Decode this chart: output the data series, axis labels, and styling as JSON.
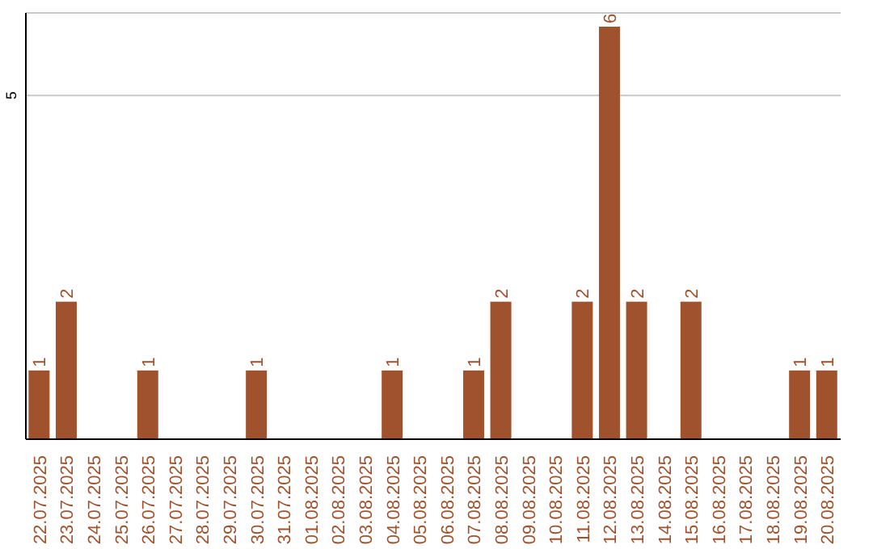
{
  "chart_data": {
    "type": "bar",
    "categories": [
      "22.07.2025",
      "23.07.2025",
      "24.07.2025",
      "25.07.2025",
      "26.07.2025",
      "27.07.2025",
      "28.07.2025",
      "29.07.2025",
      "30.07.2025",
      "31.07.2025",
      "01.08.2025",
      "02.08.2025",
      "03.08.2025",
      "04.08.2025",
      "05.08.2025",
      "06.08.2025",
      "07.08.2025",
      "08.08.2025",
      "09.08.2025",
      "10.08.2025",
      "11.08.2025",
      "12.08.2025",
      "13.08.2025",
      "14.08.2025",
      "15.08.2025",
      "16.08.2025",
      "17.08.2025",
      "18.08.2025",
      "19.08.2025",
      "20.08.2025"
    ],
    "values": [
      1,
      2,
      0,
      0,
      1,
      0,
      0,
      0,
      1,
      0,
      0,
      0,
      0,
      1,
      0,
      0,
      1,
      2,
      0,
      0,
      2,
      6,
      2,
      0,
      2,
      0,
      0,
      0,
      1,
      1
    ],
    "value_labels": [
      "1",
      "2",
      null,
      null,
      "1",
      null,
      null,
      null,
      "1",
      null,
      null,
      null,
      null,
      "1",
      null,
      null,
      "1",
      "2",
      null,
      null,
      "2",
      "6",
      "2",
      null,
      "2",
      null,
      null,
      null,
      "1",
      "1"
    ],
    "color": "#a0522d",
    "ylim": [
      0,
      6.2
    ],
    "yticks": [
      5
    ],
    "grid": "y"
  }
}
